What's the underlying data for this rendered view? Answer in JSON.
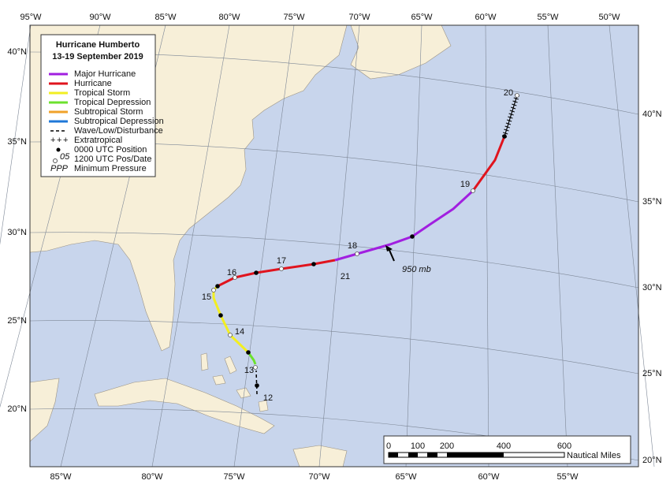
{
  "title": [
    "Hurricane Humberto",
    "13-19 September 2019"
  ],
  "legend": [
    {
      "label": "Major Hurricane",
      "color": "#a11fe0"
    },
    {
      "label": "Hurricane",
      "color": "#e0141e"
    },
    {
      "label": "Tropical Storm",
      "color": "#f2ee22"
    },
    {
      "label": "Tropical Depression",
      "color": "#6ce12e"
    },
    {
      "label": "Subtropical Storm",
      "color": "#f0a22a"
    },
    {
      "label": "Subtropical Depression",
      "color": "#1f78d8"
    },
    {
      "label": "Wave/Low/Disturbance"
    },
    {
      "label": "Extratropical"
    },
    {
      "label": "0000 UTC Position"
    },
    {
      "label": "1200 UTC Pos/Date",
      "icon": "05"
    },
    {
      "label": "Minimum Pressure",
      "icon": "PPP"
    }
  ],
  "lon_top": [
    "95°W",
    "90°W",
    "85°W",
    "80°W",
    "75°W",
    "70°W",
    "65°W",
    "60°W",
    "55°W",
    "50°W"
  ],
  "lon_bottom": [
    "85°W",
    "80°W",
    "75°W",
    "70°W",
    "65°W",
    "60°W",
    "55°W"
  ],
  "lat_left": [
    "40°N",
    "35°N",
    "30°N",
    "25°N",
    "20°N"
  ],
  "lat_right": [
    "40°N",
    "35°N",
    "30°N",
    "25°N",
    "20°N"
  ],
  "dates": [
    "12",
    "13",
    "14",
    "15",
    "16",
    "17",
    "18",
    "19",
    "20",
    "21"
  ],
  "pressure_label": "950 mb",
  "scale": {
    "labels": [
      "0",
      "100",
      "200",
      "400",
      "600"
    ],
    "unit": "Nautical Miles"
  }
}
